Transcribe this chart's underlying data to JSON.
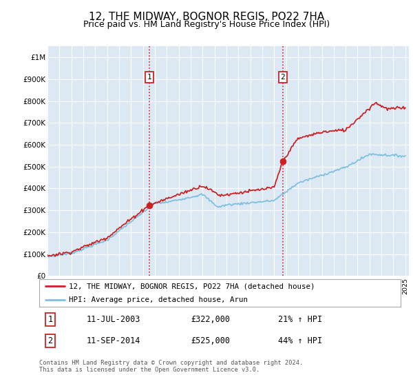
{
  "title": "12, THE MIDWAY, BOGNOR REGIS, PO22 7HA",
  "subtitle": "Price paid vs. HM Land Registry's House Price Index (HPI)",
  "background_color": "#ffffff",
  "plot_bg_color": "#dce9f5",
  "grid_color": "#ffffff",
  "ylim": [
    0,
    1050000
  ],
  "yticks": [
    0,
    100000,
    200000,
    300000,
    400000,
    500000,
    600000,
    700000,
    800000,
    900000,
    1000000
  ],
  "ytick_labels": [
    "£0",
    "£100K",
    "£200K",
    "£300K",
    "£400K",
    "£500K",
    "£600K",
    "£700K",
    "£800K",
    "£900K",
    "£1M"
  ],
  "hpi_color": "#7fbfdf",
  "price_color": "#cc2222",
  "marker_color": "#cc2222",
  "sale1_year": 2003.53,
  "sale1_price": 322000,
  "sale2_year": 2014.72,
  "sale2_price": 525000,
  "legend1_text": "12, THE MIDWAY, BOGNOR REGIS, PO22 7HA (detached house)",
  "legend2_text": "HPI: Average price, detached house, Arun",
  "annotation1_date": "11-JUL-2003",
  "annotation1_price": "£322,000",
  "annotation1_hpi": "21% ↑ HPI",
  "annotation2_date": "11-SEP-2014",
  "annotation2_price": "£525,000",
  "annotation2_hpi": "44% ↑ HPI",
  "footer": "Contains HM Land Registry data © Crown copyright and database right 2024.\nThis data is licensed under the Open Government Licence v3.0."
}
